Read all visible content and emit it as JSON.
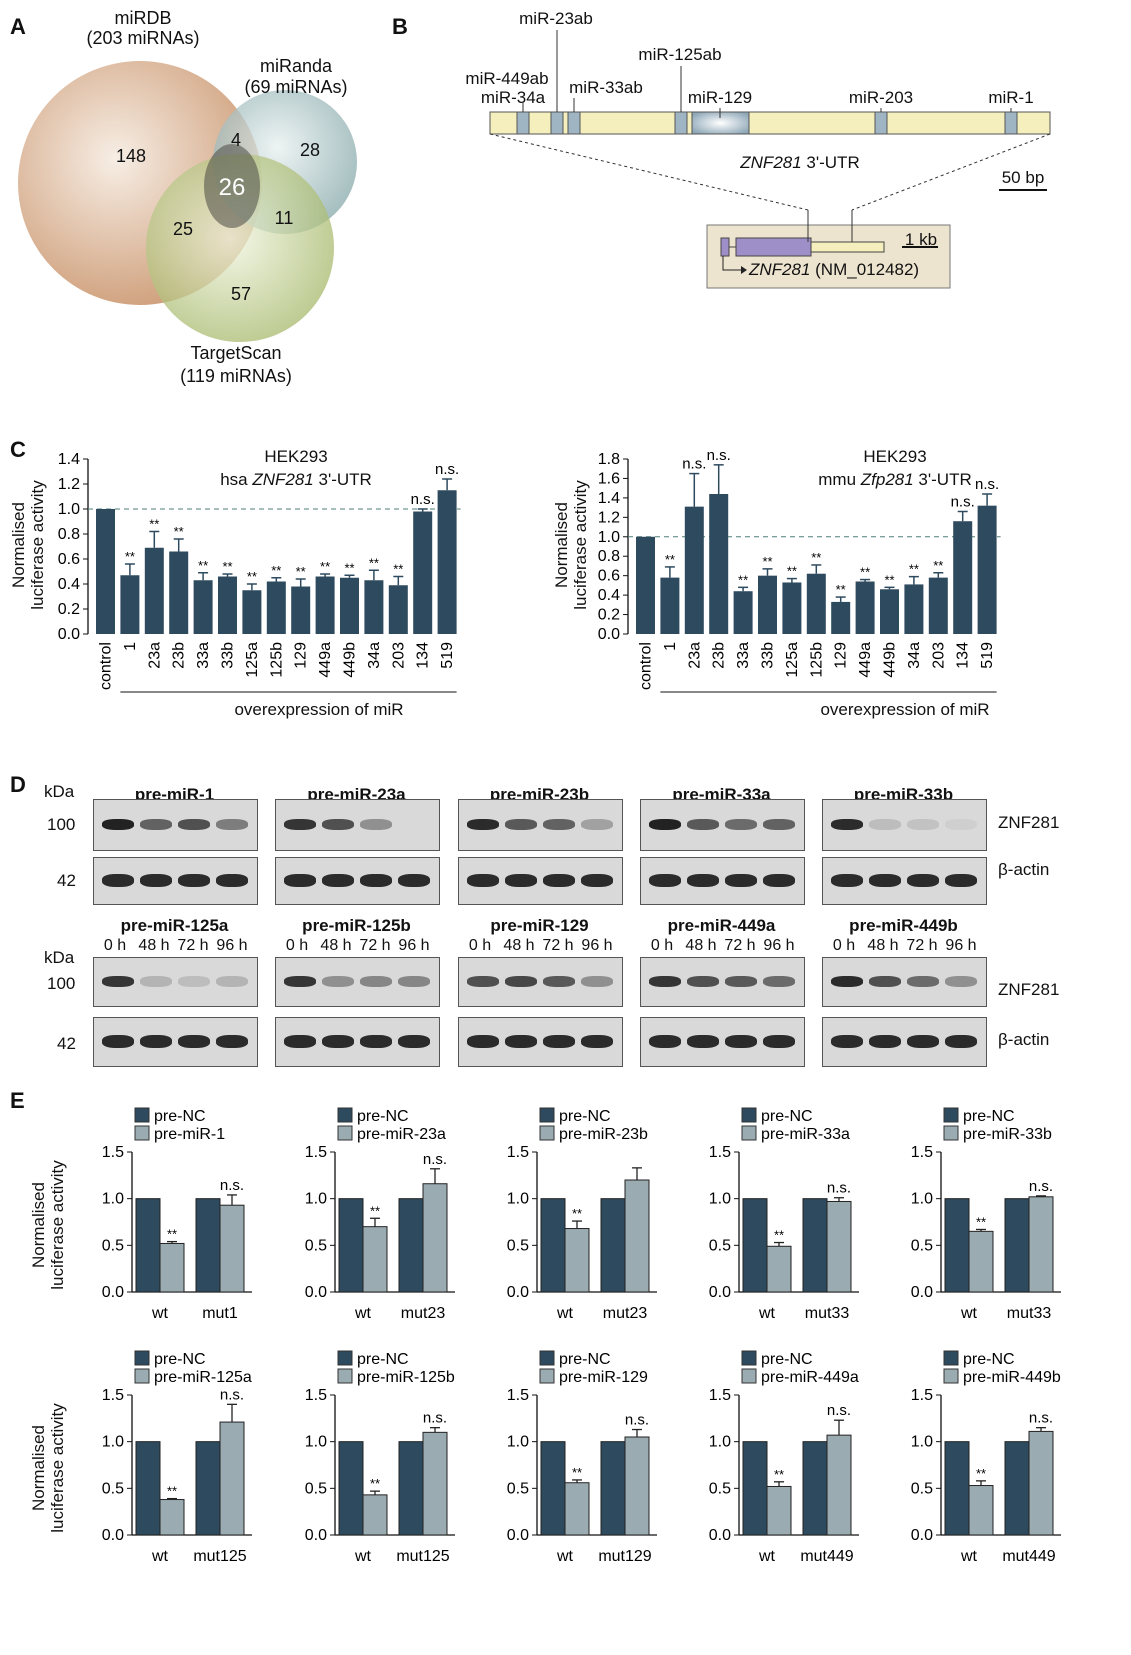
{
  "panels": {
    "A": "A",
    "B": "B",
    "C": "C",
    "D": "D",
    "E": "E"
  },
  "venn": {
    "sets": [
      {
        "name": "miRDB",
        "count": "(203 miRNAs)",
        "color": "#c9936a"
      },
      {
        "name": "miRanda",
        "count": "(69 miRNAs)",
        "color": "#7fa3a5"
      },
      {
        "name": "TargetScan",
        "count": "(119 miRNAs)",
        "color": "#9eb25e"
      }
    ],
    "regions": {
      "mirdb_only": "148",
      "mirdb_miranda": "4",
      "miranda_only": "28",
      "all": "26",
      "mirdb_targetscan": "25",
      "miranda_targetscan": "11",
      "targetscan_only": "57"
    }
  },
  "utr_map": {
    "sites": [
      "miR-23ab",
      "miR-449ab",
      "miR-34a",
      "miR-33ab",
      "miR-125ab",
      "miR-129",
      "miR-203",
      "miR-1"
    ],
    "utr_gene": "ZNF281",
    "utr_suffix": " 3'-UTR",
    "scale_bar": "50 bp",
    "gene_scale": "1 kb",
    "gene_name": "ZNF281",
    "gene_accession": " (NM_012482)",
    "colors": {
      "utr": "#f4efbc",
      "site": "#9fb5c4",
      "gene": "#9f8fc9",
      "box": "#ede4cf"
    }
  },
  "panel_c": {
    "ylabel1": "Normalised",
    "ylabel2": "luciferase activity",
    "xlabel": "overexpression of miR",
    "left_title1": "HEK293",
    "left_title2_pre": "hsa ",
    "left_title2_gene": "ZNF281",
    "left_title2_post": " 3'-UTR",
    "right_title1": "HEK293",
    "right_title2_pre": "mmu ",
    "right_title2_gene": "Zfp281",
    "right_title2_post": " 3'-UTR"
  },
  "panel_d": {
    "kda": "kDa",
    "mw_high": "100",
    "mw_low": "42",
    "timepoints": [
      "0 h",
      "48 h",
      "72 h",
      "96 h"
    ],
    "target": "ZNF281",
    "loading": "β-actin",
    "row1": [
      "pre-miR-1",
      "pre-miR-23a",
      "pre-miR-23b",
      "pre-miR-33a",
      "pre-miR-33b"
    ],
    "row2": [
      "pre-miR-125a",
      "pre-miR-125b",
      "pre-miR-129",
      "pre-miR-449a",
      "pre-miR-449b"
    ]
  },
  "panel_e": {
    "ylabel1": "Normalised",
    "ylabel2": "luciferase activity",
    "control": "pre-NC",
    "colors": {
      "control": "#2e4a5e",
      "mir": "#9aabb1"
    }
  },
  "chart_data": [
    {
      "type": "bar",
      "title": "HEK293 hsa ZNF281 3'-UTR",
      "xlabel": "overexpression of miR",
      "ylabel": "Normalised luciferase activity",
      "categories": [
        "control",
        "1",
        "23a",
        "23b",
        "33a",
        "33b",
        "125a",
        "125b",
        "129",
        "449a",
        "449b",
        "34a",
        "203",
        "134",
        "519"
      ],
      "values": [
        1.0,
        0.47,
        0.69,
        0.66,
        0.43,
        0.46,
        0.35,
        0.42,
        0.38,
        0.46,
        0.45,
        0.43,
        0.39,
        0.98,
        1.15
      ],
      "errors": [
        0,
        0.09,
        0.13,
        0.1,
        0.06,
        0.02,
        0.05,
        0.03,
        0.06,
        0.02,
        0.02,
        0.08,
        0.07,
        0.02,
        0.09
      ],
      "sig": [
        "",
        "**",
        "**",
        "**",
        "**",
        "**",
        "**",
        "**",
        "**",
        "**",
        "**",
        "**",
        "**",
        "n.s.",
        "n.s."
      ],
      "ylim": [
        0,
        1.4
      ],
      "yticks": [
        "0.0",
        "0.2",
        "0.4",
        "0.6",
        "0.8",
        "1.0",
        "1.2",
        "1.4"
      ],
      "reference": 1.0
    },
    {
      "type": "bar",
      "title": "HEK293 mmu Zfp281 3'-UTR",
      "xlabel": "overexpression of miR",
      "ylabel": "Normalised luciferase activity",
      "categories": [
        "control",
        "1",
        "23a",
        "23b",
        "33a",
        "33b",
        "125a",
        "125b",
        "129",
        "449a",
        "449b",
        "34a",
        "203",
        "134",
        "519"
      ],
      "values": [
        1.0,
        0.58,
        1.31,
        1.44,
        0.44,
        0.6,
        0.53,
        0.62,
        0.33,
        0.54,
        0.46,
        0.51,
        0.58,
        1.16,
        1.32
      ],
      "errors": [
        0,
        0.11,
        0.34,
        0.3,
        0.04,
        0.07,
        0.04,
        0.09,
        0.05,
        0.02,
        0.02,
        0.08,
        0.05,
        0.1,
        0.12
      ],
      "sig": [
        "",
        "**",
        "n.s.",
        "n.s.",
        "**",
        "**",
        "**",
        "**",
        "**",
        "**",
        "**",
        "**",
        "**",
        "n.s.",
        "n.s."
      ],
      "ylim": [
        0,
        1.8
      ],
      "yticks": [
        "0.0",
        "0.2",
        "0.4",
        "0.6",
        "0.8",
        "1.0",
        "1.2",
        "1.4",
        "1.6",
        "1.8"
      ],
      "reference": 1.0
    },
    {
      "type": "bar",
      "legend": [
        "pre-NC",
        "pre-miR-1"
      ],
      "categories": [
        "wt",
        "mut1"
      ],
      "series": [
        {
          "name": "pre-NC",
          "values": [
            1.0,
            1.0
          ]
        },
        {
          "name": "pre-miR-1",
          "values": [
            0.52,
            0.93
          ]
        }
      ],
      "errors": [
        0.02,
        0.11
      ],
      "sig": [
        "**",
        "n.s."
      ],
      "ylim": [
        0,
        1.5
      ],
      "yticks": [
        "0.0",
        "0.5",
        "1.0",
        "1.5"
      ]
    },
    {
      "type": "bar",
      "legend": [
        "pre-NC",
        "pre-miR-23a"
      ],
      "categories": [
        "wt",
        "mut23"
      ],
      "series": [
        {
          "name": "pre-NC",
          "values": [
            1.0,
            1.0
          ]
        },
        {
          "name": "pre-miR-23a",
          "values": [
            0.7,
            1.16
          ]
        }
      ],
      "errors": [
        0.09,
        0.16
      ],
      "sig": [
        "**",
        "n.s."
      ],
      "ylim": [
        0,
        1.5
      ],
      "yticks": [
        "0.0",
        "0.5",
        "1.0",
        "1.5"
      ]
    },
    {
      "type": "bar",
      "legend": [
        "pre-NC",
        "pre-miR-23b"
      ],
      "categories": [
        "wt",
        "mut23"
      ],
      "series": [
        {
          "name": "pre-NC",
          "values": [
            1.0,
            1.0
          ]
        },
        {
          "name": "pre-miR-23b",
          "values": [
            0.68,
            1.2
          ]
        }
      ],
      "errors": [
        0.08,
        0.13
      ],
      "sig": [
        "**",
        ""
      ],
      "ylim": [
        0,
        1.5
      ],
      "yticks": [
        "0.0",
        "0.5",
        "1.0",
        "1.5"
      ]
    },
    {
      "type": "bar",
      "legend": [
        "pre-NC",
        "pre-miR-33a"
      ],
      "categories": [
        "wt",
        "mut33"
      ],
      "series": [
        {
          "name": "pre-NC",
          "values": [
            1.0,
            1.0
          ]
        },
        {
          "name": "pre-miR-33a",
          "values": [
            0.49,
            0.97
          ]
        }
      ],
      "errors": [
        0.04,
        0.04
      ],
      "sig": [
        "**",
        "n.s."
      ],
      "ylim": [
        0,
        1.5
      ],
      "yticks": [
        "0.0",
        "0.5",
        "1.0",
        "1.5"
      ]
    },
    {
      "type": "bar",
      "legend": [
        "pre-NC",
        "pre-miR-33b"
      ],
      "categories": [
        "wt",
        "mut33"
      ],
      "series": [
        {
          "name": "pre-NC",
          "values": [
            1.0,
            1.0
          ]
        },
        {
          "name": "pre-miR-33b",
          "values": [
            0.65,
            1.02
          ]
        }
      ],
      "errors": [
        0.02,
        0.01
      ],
      "sig": [
        "**",
        "n.s."
      ],
      "ylim": [
        0,
        1.5
      ],
      "yticks": [
        "0.0",
        "0.5",
        "1.0",
        "1.5"
      ]
    },
    {
      "type": "bar",
      "legend": [
        "pre-NC",
        "pre-miR-125a"
      ],
      "categories": [
        "wt",
        "mut125"
      ],
      "series": [
        {
          "name": "pre-NC",
          "values": [
            1.0,
            1.0
          ]
        },
        {
          "name": "pre-miR-125a",
          "values": [
            0.38,
            1.21
          ]
        }
      ],
      "errors": [
        0.01,
        0.19
      ],
      "sig": [
        "**",
        "n.s."
      ],
      "ylim": [
        0,
        1.5
      ],
      "yticks": [
        "0.0",
        "0.5",
        "1.0",
        "1.5"
      ]
    },
    {
      "type": "bar",
      "legend": [
        "pre-NC",
        "pre-miR-125b"
      ],
      "categories": [
        "wt",
        "mut125"
      ],
      "series": [
        {
          "name": "pre-NC",
          "values": [
            1.0,
            1.0
          ]
        },
        {
          "name": "pre-miR-125b",
          "values": [
            0.43,
            1.1
          ]
        }
      ],
      "errors": [
        0.04,
        0.05
      ],
      "sig": [
        "**",
        "n.s."
      ],
      "ylim": [
        0,
        1.5
      ],
      "yticks": [
        "0.0",
        "0.5",
        "1.0",
        "1.5"
      ]
    },
    {
      "type": "bar",
      "legend": [
        "pre-NC",
        "pre-miR-129"
      ],
      "categories": [
        "wt",
        "mut129"
      ],
      "series": [
        {
          "name": "pre-NC",
          "values": [
            1.0,
            1.0
          ]
        },
        {
          "name": "pre-miR-129",
          "values": [
            0.56,
            1.05
          ]
        }
      ],
      "errors": [
        0.03,
        0.08
      ],
      "sig": [
        "**",
        "n.s."
      ],
      "ylim": [
        0,
        1.5
      ],
      "yticks": [
        "0.0",
        "0.5",
        "1.0",
        "1.5"
      ]
    },
    {
      "type": "bar",
      "legend": [
        "pre-NC",
        "pre-miR-449a"
      ],
      "categories": [
        "wt",
        "mut449"
      ],
      "series": [
        {
          "name": "pre-NC",
          "values": [
            1.0,
            1.0
          ]
        },
        {
          "name": "pre-miR-449a",
          "values": [
            0.52,
            1.07
          ]
        }
      ],
      "errors": [
        0.05,
        0.16
      ],
      "sig": [
        "**",
        "n.s."
      ],
      "ylim": [
        0,
        1.5
      ],
      "yticks": [
        "0.0",
        "0.5",
        "1.0",
        "1.5"
      ]
    },
    {
      "type": "bar",
      "legend": [
        "pre-NC",
        "pre-miR-449b"
      ],
      "categories": [
        "wt",
        "mut449"
      ],
      "series": [
        {
          "name": "pre-NC",
          "values": [
            1.0,
            1.0
          ]
        },
        {
          "name": "pre-miR-449b",
          "values": [
            0.53,
            1.11
          ]
        }
      ],
      "errors": [
        0.05,
        0.04
      ],
      "sig": [
        "**",
        "n.s."
      ],
      "ylim": [
        0,
        1.5
      ],
      "yticks": [
        "0.0",
        "0.5",
        "1.0",
        "1.5"
      ]
    }
  ]
}
